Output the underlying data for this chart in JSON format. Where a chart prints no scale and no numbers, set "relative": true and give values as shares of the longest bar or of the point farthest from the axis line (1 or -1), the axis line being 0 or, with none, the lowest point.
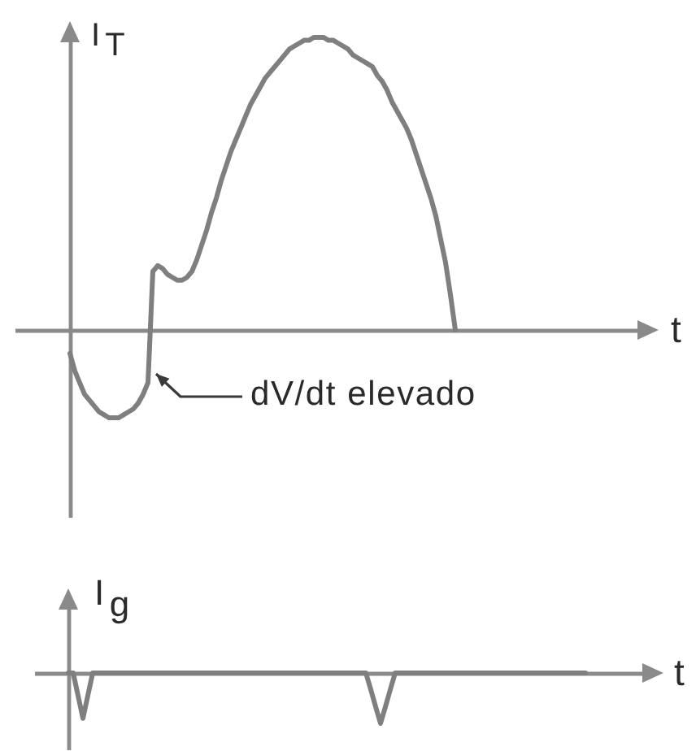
{
  "chart_data": [
    {
      "type": "line",
      "ylabel": "I$_{T}$",
      "xlabel": "t",
      "annotations": [
        "dV/dt elevado"
      ],
      "relative": true,
      "categories": [
        null,
        null,
        null,
        null,
        null,
        null,
        null,
        null,
        null,
        null,
        null,
        null,
        null,
        null,
        null,
        null,
        null,
        null,
        null,
        null,
        null,
        null,
        null,
        null,
        null,
        null,
        null,
        null,
        null,
        null,
        null,
        null,
        null,
        null,
        null,
        null,
        null,
        null,
        null,
        null,
        null,
        null,
        null,
        null,
        null,
        null,
        null,
        null,
        null,
        null,
        null,
        null,
        null,
        null,
        null,
        null,
        null,
        null,
        null,
        null,
        null,
        null,
        null,
        null,
        null,
        null,
        null,
        null,
        null,
        null,
        null,
        null,
        null,
        null,
        null,
        null,
        null,
        null,
        null,
        null
      ],
      "series": [
        {
          "color": "#7f7f7f",
          "values": [
            -0.08,
            -0.14,
            -0.18,
            -0.22,
            -0.24,
            -0.26,
            -0.28,
            -0.29,
            -0.3,
            -0.3,
            -0.3,
            -0.29,
            -0.28,
            -0.27,
            -0.25,
            -0.22,
            -0.18,
            0.2,
            0.22,
            0.21,
            0.19,
            0.18,
            0.17,
            0.17,
            0.18,
            0.2,
            0.24,
            0.29,
            0.34,
            0.4,
            0.45,
            0.51,
            0.56,
            0.61,
            0.65,
            0.69,
            0.73,
            0.77,
            0.8,
            0.83,
            0.86,
            0.88,
            0.9,
            0.92,
            0.94,
            0.96,
            0.97,
            0.98,
            0.99,
            0.99,
            1,
            1,
            1,
            0.99,
            0.99,
            0.98,
            0.97,
            0.96,
            0.94,
            0.93,
            0.92,
            0.91,
            0.9,
            0.87,
            0.85,
            0.82,
            0.78,
            0.75,
            0.72,
            0.69,
            0.65,
            0.6,
            0.55,
            0.5,
            0.45,
            0.39,
            0.31,
            0.23,
            0.12,
            0
          ]
        }
      ]
    },
    {
      "type": "line",
      "ylabel": "I$_{g}$",
      "xlabel": "t",
      "relative": true,
      "categories": [
        null,
        null,
        null,
        null,
        null,
        null,
        null,
        null,
        null,
        null,
        null,
        null,
        null,
        null,
        null,
        null,
        null,
        null,
        null,
        null,
        null,
        null,
        null,
        null,
        null,
        null,
        null,
        null,
        null,
        null,
        null,
        null,
        null,
        null,
        null,
        null,
        null,
        null,
        null,
        null,
        null,
        null,
        null,
        null,
        null,
        null,
        null,
        null,
        null,
        null,
        null,
        null,
        null,
        null,
        null,
        null,
        null,
        null,
        null,
        null,
        null,
        null,
        null,
        null,
        null,
        null,
        null,
        null,
        null,
        null,
        null,
        null,
        null,
        null,
        null,
        null,
        null,
        null,
        null,
        null,
        null,
        null,
        null,
        null,
        null,
        null,
        null,
        null,
        null,
        null,
        null,
        null,
        null,
        null,
        null,
        null,
        null,
        null,
        null,
        null,
        null,
        null,
        null,
        null,
        null,
        null,
        null
      ],
      "series": [
        {
          "color": "#7f7f7f",
          "values": [
            0,
            0,
            -0.45,
            -0.9,
            -0.45,
            0,
            0,
            0,
            0,
            0,
            0,
            0,
            0,
            0,
            0,
            0,
            0,
            0,
            0,
            0,
            0,
            0,
            0,
            0,
            0,
            0,
            0,
            0,
            0,
            0,
            0,
            0,
            0,
            0,
            0,
            0,
            0,
            0,
            0,
            0,
            0,
            0,
            0,
            0,
            0,
            0,
            0,
            0,
            0,
            0,
            0,
            0,
            0,
            0,
            0,
            0,
            0,
            0,
            0,
            0,
            0,
            0,
            -0.33,
            -0.67,
            -1,
            -0.67,
            -0.33,
            0,
            0,
            0,
            0,
            0,
            0,
            0,
            0,
            0,
            0,
            0,
            0,
            0,
            0,
            0,
            0,
            0,
            0,
            0,
            0,
            0,
            0,
            0,
            0,
            0,
            0,
            0,
            0,
            0,
            0,
            0,
            0,
            0,
            0,
            0,
            0,
            0,
            0,
            0,
            0
          ]
        }
      ]
    }
  ]
}
